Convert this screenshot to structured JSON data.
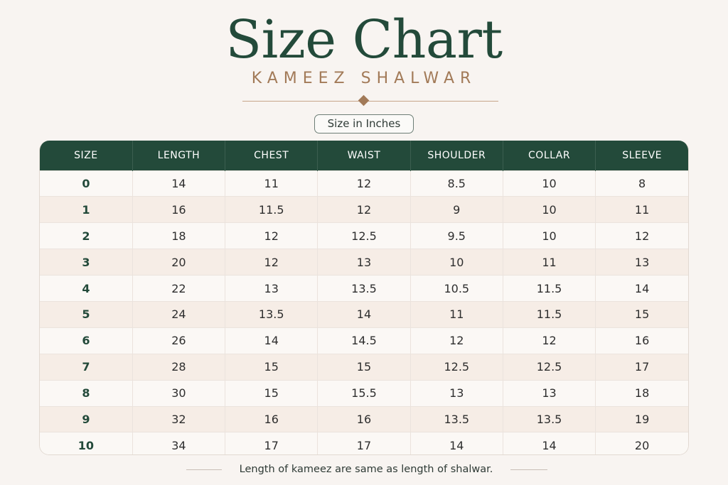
{
  "header": {
    "title": "Size Chart",
    "subtitle": "KAMEEZ SHALWAR",
    "units_label": "Size in Inches"
  },
  "colors": {
    "primary_green": "#234a3a",
    "accent_tan": "#a27a58",
    "background": "#f8f4f1"
  },
  "table": {
    "columns": [
      "SIZE",
      "LENGTH",
      "CHEST",
      "WAIST",
      "SHOULDER",
      "COLLAR",
      "SLEEVE"
    ],
    "rows": [
      [
        "0",
        "14",
        "11",
        "12",
        "8.5",
        "10",
        "8"
      ],
      [
        "1",
        "16",
        "11.5",
        "12",
        "9",
        "10",
        "11"
      ],
      [
        "2",
        "18",
        "12",
        "12.5",
        "9.5",
        "10",
        "12"
      ],
      [
        "3",
        "20",
        "12",
        "13",
        "10",
        "11",
        "13"
      ],
      [
        "4",
        "22",
        "13",
        "13.5",
        "10.5",
        "11.5",
        "14"
      ],
      [
        "5",
        "24",
        "13.5",
        "14",
        "11",
        "11.5",
        "15"
      ],
      [
        "6",
        "26",
        "14",
        "14.5",
        "12",
        "12",
        "16"
      ],
      [
        "7",
        "28",
        "15",
        "15",
        "12.5",
        "12.5",
        "17"
      ],
      [
        "8",
        "30",
        "15",
        "15.5",
        "13",
        "13",
        "18"
      ],
      [
        "9",
        "32",
        "16",
        "16",
        "13.5",
        "13.5",
        "19"
      ],
      [
        "10",
        "34",
        "17",
        "17",
        "14",
        "14",
        "20"
      ]
    ]
  },
  "footer": {
    "note": "Length of kameez are same as length of shalwar."
  }
}
